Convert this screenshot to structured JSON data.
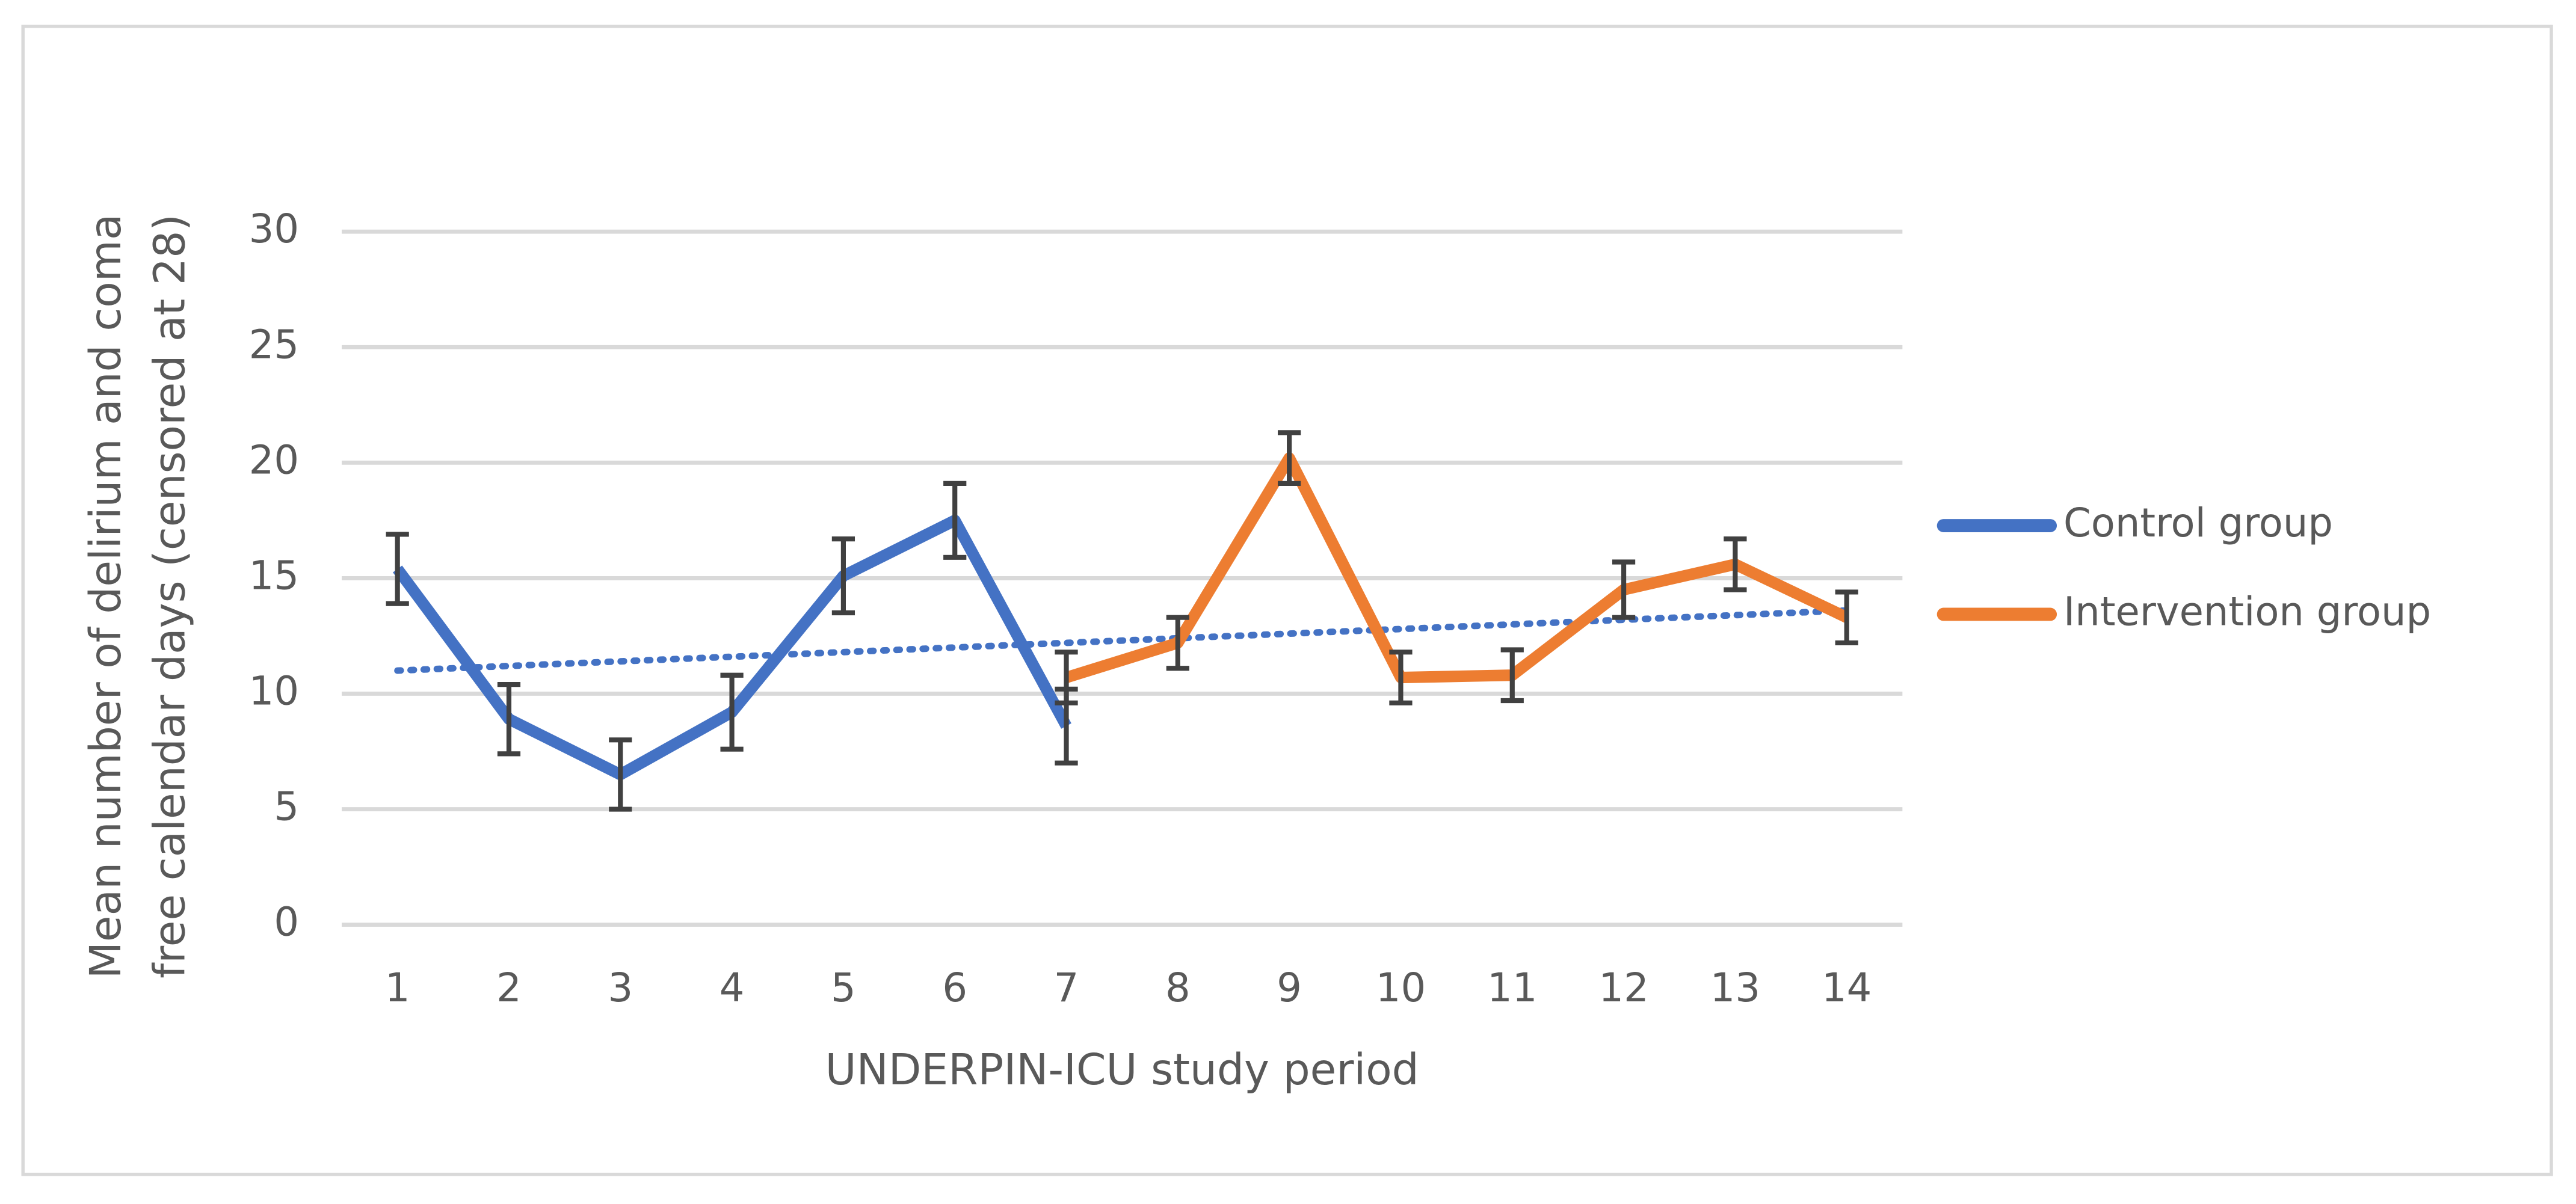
{
  "chart_data": {
    "type": "line",
    "x": [
      1,
      2,
      3,
      4,
      5,
      6,
      7,
      8,
      9,
      10,
      11,
      12,
      13,
      14
    ],
    "xlim": [
      0.5,
      14.5
    ],
    "ylim": [
      0,
      30
    ],
    "yticks": [
      0,
      5,
      10,
      15,
      20,
      25,
      30
    ],
    "grid": true,
    "x_label": "UNDERPIN-ICU study period",
    "y_label": [
      "Mean number of delirium and coma",
      "free calendar days (censored at 28)"
    ],
    "legend": "right",
    "series": [
      {
        "name": "Control group",
        "color": "#4472c4",
        "values": [
          15.4,
          8.9,
          6.5,
          9.2,
          15.1,
          17.5,
          8.6,
          null,
          null,
          null,
          null,
          null,
          null,
          null
        ],
        "errors": [
          1.5,
          1.5,
          1.5,
          1.6,
          1.6,
          1.6,
          1.6,
          null,
          null,
          null,
          null,
          null,
          null,
          null
        ]
      },
      {
        "name": "Intervention group",
        "color": "#ed7d31",
        "values": [
          null,
          null,
          null,
          null,
          null,
          null,
          10.7,
          12.2,
          20.2,
          10.7,
          10.8,
          14.5,
          15.6,
          13.3
        ],
        "errors": [
          null,
          null,
          null,
          null,
          null,
          null,
          1.1,
          1.1,
          1.1,
          1.1,
          1.1,
          1.2,
          1.1,
          1.1
        ]
      }
    ],
    "trendline": {
      "x": [
        1,
        14
      ],
      "values": [
        11.0,
        13.6
      ],
      "color": "#4472c4"
    }
  }
}
